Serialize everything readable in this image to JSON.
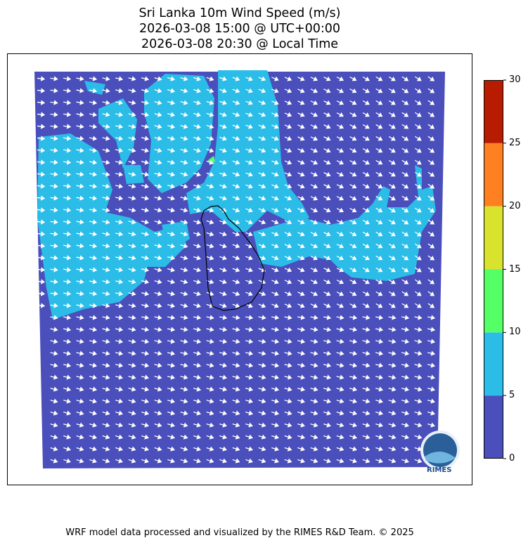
{
  "title": {
    "line1": "Sri Lanka 10m Wind Speed (m/s)",
    "line2": "2026-03-08 15:00 @ UTC+00:00",
    "line3": "2026-03-08 20:30 @ Local Time"
  },
  "colorbar": {
    "ticks": [
      "0",
      "5",
      "10",
      "15",
      "20",
      "25",
      "30"
    ],
    "colors": [
      "#4a4fbb",
      "#2bbde8",
      "#55ff66",
      "#d9e22c",
      "#ff8020",
      "#b81c00"
    ]
  },
  "logo": {
    "text": "RIMES"
  },
  "footer": "WRF model data processed and visualized by the RIMES R&D Team. © 2025"
}
